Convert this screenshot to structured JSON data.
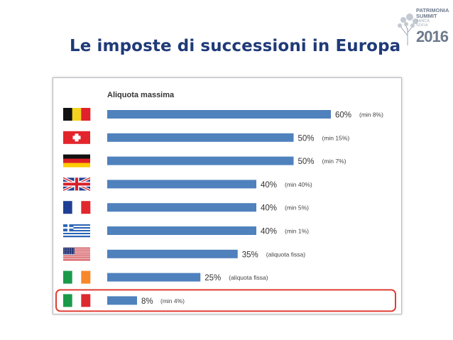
{
  "header": {
    "title": "Le imposte di successioni in Europa",
    "logo_line1": "PATRIMONIA",
    "logo_line2": "SUMMIT",
    "logo_sub1": "BANCA",
    "logo_sub2": "SOFIA",
    "logo_year": "2016"
  },
  "colors": {
    "bar": "#4f81bd",
    "highlight": "#e03c31",
    "title": "#1f3a78"
  },
  "chart_data": {
    "type": "bar",
    "orientation": "horizontal",
    "title": "Aliquota massima",
    "xlim": [
      0,
      60
    ],
    "categories": [
      "belgium-flag",
      "switzerland-flag",
      "germany-flag",
      "uk-flag",
      "france-flag",
      "greece-flag",
      "usa-flag",
      "ireland-flag",
      "italy-flag"
    ],
    "values": [
      60,
      50,
      50,
      40,
      40,
      40,
      35,
      25,
      8
    ],
    "value_labels": [
      "60%",
      "50%",
      "50%",
      "40%",
      "40%",
      "40%",
      "35%",
      "25%",
      "8%"
    ],
    "annotations": [
      "(min 8%)",
      "(min 15%)",
      "(min 7%)",
      "(min 40%)",
      "(min 5%)",
      "(min 1%)",
      "(aliquota fissa)",
      "(aliquota fissa)",
      "(min 4%)"
    ],
    "highlighted_index": 8
  }
}
